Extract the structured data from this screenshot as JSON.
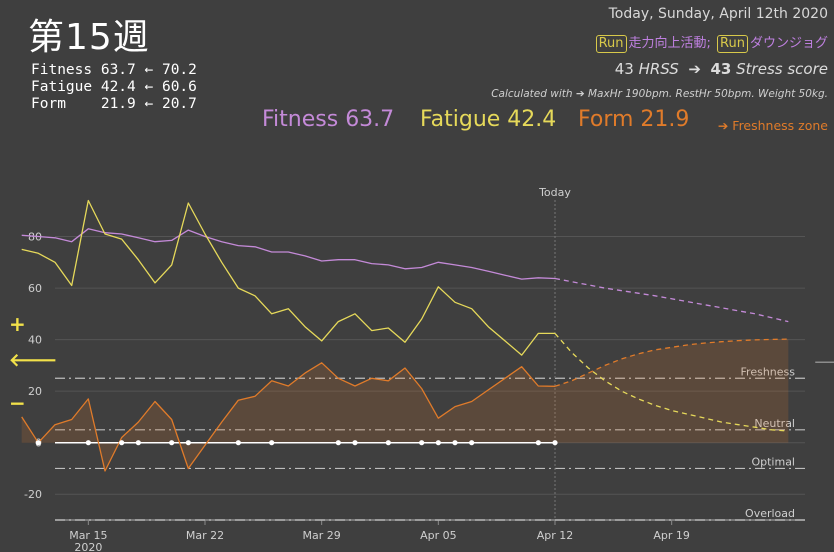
{
  "header": {
    "title": "第15週",
    "stats": [
      {
        "label": "Fitness ",
        "current": "63.7",
        "arrow": "←",
        "previous": "70.2"
      },
      {
        "label": "Fatigue ",
        "current": "42.4",
        "arrow": "←",
        "previous": "60.6"
      },
      {
        "label": "Form    ",
        "current": "21.9",
        "arrow": "←",
        "previous": "20.7"
      }
    ],
    "date": "Today, Sunday, April 12th 2020",
    "activities": [
      {
        "badge": "Run",
        "name": "走力向上活動;"
      },
      {
        "badge": "Run",
        "name": "ダウンジョグ"
      }
    ],
    "hrss_value": "43",
    "hrss_unit": "HRSS",
    "arrow": "➔",
    "stress_value": "43",
    "stress_unit": "Stress score",
    "calc_note": "Calculated with ➔ MaxHr 190bpm. RestHr 50bpm. Weight 50kg.",
    "big_fitness": "Fitness 63.7",
    "big_fatigue": "Fatigue 42.4",
    "big_form": "Form 21.9",
    "freshness_zone_link": "➔ Freshness zone",
    "plus_sign": "+",
    "left_arrow": "🡐",
    "minus_sign": "−",
    "right_arrow": "🡒"
  },
  "colors": {
    "fitness": "#c48ad8",
    "fatigue": "#e6d95a",
    "form": "#e07b2a",
    "form_fill": "rgba(224,123,42,0.18)",
    "zero_line": "#ffffff",
    "grid": "#555555",
    "threshold": "#bdbdbd"
  },
  "chart_data": {
    "type": "line",
    "today_label": "Today",
    "today_day": 29,
    "y_ticks": [
      80,
      60,
      40,
      20,
      0,
      -20
    ],
    "ylim": [
      -30,
      100
    ],
    "x_range": [
      -1,
      44
    ],
    "x_ticks": [
      {
        "day": 1,
        "label": "Mar 15",
        "sublabel": "2020"
      },
      {
        "day": 8,
        "label": "Mar 22",
        "sublabel": ""
      },
      {
        "day": 15,
        "label": "Mar 29",
        "sublabel": ""
      },
      {
        "day": 22,
        "label": "Apr 05",
        "sublabel": ""
      },
      {
        "day": 29,
        "label": "Apr 12",
        "sublabel": ""
      },
      {
        "day": 36,
        "label": "Apr 19",
        "sublabel": ""
      }
    ],
    "zones": [
      {
        "label": "Freshness",
        "value": 25
      },
      {
        "label": "Neutral",
        "value": 5
      },
      {
        "label": "Optimal",
        "value": -10
      },
      {
        "label": "Overload",
        "value": -30
      }
    ],
    "series": [
      {
        "key": "fitness",
        "days": [
          -3,
          -2,
          -1,
          0,
          1,
          2,
          3,
          4,
          5,
          6,
          7,
          8,
          9,
          10,
          11,
          12,
          13,
          14,
          15,
          16,
          17,
          18,
          19,
          20,
          21,
          22,
          23,
          24,
          25,
          26,
          27,
          28,
          29
        ],
        "values": [
          80.5,
          80,
          79.5,
          78,
          83,
          81.5,
          81,
          79.5,
          78,
          78.5,
          82.5,
          80,
          78,
          76.5,
          76,
          74,
          74,
          72.5,
          70.5,
          71,
          71,
          69.5,
          69,
          67.5,
          68,
          70,
          69,
          68,
          66.5,
          65,
          63.5,
          64,
          63.7
        ]
      },
      {
        "key": "fatigue",
        "days": [
          -3,
          -2,
          -1,
          0,
          1,
          2,
          3,
          4,
          5,
          6,
          7,
          8,
          9,
          10,
          11,
          12,
          13,
          14,
          15,
          16,
          17,
          18,
          19,
          20,
          21,
          22,
          23,
          24,
          25,
          26,
          27,
          28,
          29
        ],
        "values": [
          75,
          73.5,
          70,
          61,
          94,
          81,
          79,
          71,
          62,
          69,
          93,
          81,
          70,
          60,
          57,
          50,
          52,
          45,
          39.5,
          47,
          50,
          43.5,
          44.5,
          39,
          48,
          60.5,
          54.5,
          52,
          45,
          39.5,
          34,
          42.4,
          42.4
        ]
      },
      {
        "key": "form",
        "days": [
          -3,
          -2,
          -1,
          0,
          1,
          2,
          3,
          4,
          5,
          6,
          7,
          8,
          9,
          10,
          11,
          12,
          13,
          14,
          15,
          16,
          17,
          18,
          19,
          20,
          21,
          22,
          23,
          24,
          25,
          26,
          27,
          28,
          29
        ],
        "values": [
          10,
          0,
          7,
          9,
          17,
          -11,
          2,
          8,
          16,
          9,
          -10,
          -1,
          8,
          16.5,
          18,
          24,
          22,
          27,
          31,
          25,
          22,
          25,
          24,
          29,
          21,
          9.5,
          14,
          16,
          20.5,
          25,
          29.5,
          22,
          21.9
        ]
      },
      {
        "key": "fitness_projection",
        "days": [
          29,
          32,
          35,
          38,
          41,
          43
        ],
        "values": [
          63.7,
          60,
          57,
          53.5,
          50,
          47
        ]
      },
      {
        "key": "fatigue_projection",
        "days": [
          29,
          30,
          31,
          32,
          33,
          34,
          35,
          36,
          37,
          38,
          39,
          40,
          41,
          42,
          43
        ],
        "values": [
          42.4,
          35,
          29,
          24,
          20,
          17,
          14.5,
          12.5,
          11,
          9.5,
          8,
          7,
          6,
          5,
          4.5
        ]
      },
      {
        "key": "form_projection",
        "days": [
          29,
          30,
          31,
          32,
          33,
          34,
          35,
          36,
          37,
          38,
          39,
          40,
          41,
          42,
          43
        ],
        "values": [
          21.9,
          24,
          27,
          30,
          32.5,
          34.5,
          36,
          37,
          38,
          38.7,
          39.2,
          39.6,
          39.9,
          40.1,
          40.2
        ]
      }
    ],
    "activity_days": [
      -2,
      1,
      3,
      4,
      6,
      7,
      10,
      12,
      16,
      17,
      19,
      21,
      22,
      23,
      24,
      28,
      29
    ]
  }
}
